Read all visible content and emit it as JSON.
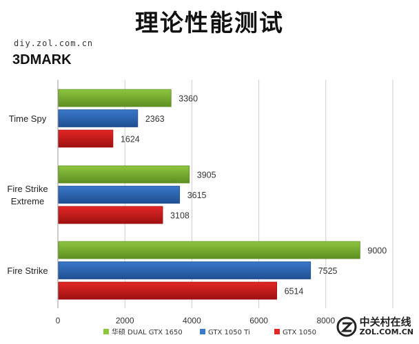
{
  "header": {
    "title": "理论性能测试",
    "site": "diy.zol.com.cn",
    "benchmark": "3DMARK"
  },
  "watermark": {
    "cn": "中关村在线",
    "en": "ZOL.COM.CN"
  },
  "colors": {
    "series_1": "#8cc63f",
    "series_2": "#3a78c9",
    "series_3": "#e32626",
    "grid": "#cccccc"
  },
  "chart_data": {
    "type": "bar",
    "orientation": "horizontal",
    "title": "",
    "xlabel": "",
    "ylabel": "",
    "categories": [
      "Time Spy",
      "Fire Strike Extreme",
      "Fire Strike"
    ],
    "series": [
      {
        "name": "华硕 DUAL GTX 1650",
        "values": [
          3360,
          3905,
          9000
        ]
      },
      {
        "name": "GTX 1050 Ti",
        "values": [
          2363,
          3615,
          7525
        ]
      },
      {
        "name": "GTX 1050",
        "values": [
          1624,
          3108,
          6514
        ]
      }
    ],
    "xticks": [
      "0",
      "2000",
      "4000",
      "6000",
      "8000"
    ],
    "xlim": [
      0,
      10000
    ],
    "grid": true,
    "legend_position": "bottom"
  }
}
